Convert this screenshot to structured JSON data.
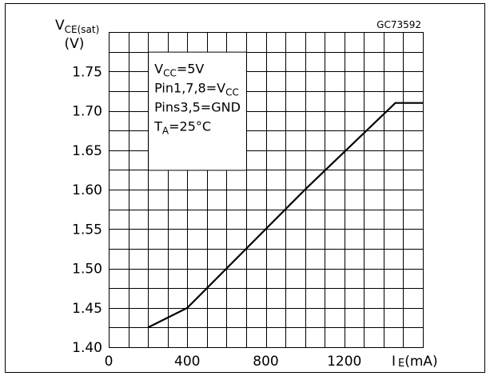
{
  "chart_data": {
    "type": "line",
    "figure_id": "GC73592",
    "ylabel": {
      "main": "V",
      "sub": "CE(sat)",
      "unit": "(V)"
    },
    "xlabel": {
      "main": "I",
      "sub": "E",
      "unit": "(mA)"
    },
    "xlim": [
      0,
      1600
    ],
    "ylim": [
      1.4,
      1.8
    ],
    "x_ticks": [
      {
        "value": 0,
        "label": "0"
      },
      {
        "value": 400,
        "label": "400"
      },
      {
        "value": 800,
        "label": "800"
      },
      {
        "value": 1200,
        "label": "1200"
      }
    ],
    "y_ticks": [
      {
        "value": 1.4,
        "label": "1.40"
      },
      {
        "value": 1.45,
        "label": "1.45"
      },
      {
        "value": 1.5,
        "label": "1.50"
      },
      {
        "value": 1.55,
        "label": "1.55"
      },
      {
        "value": 1.6,
        "label": "1.60"
      },
      {
        "value": 1.65,
        "label": "1.65"
      },
      {
        "value": 1.7,
        "label": "1.70"
      },
      {
        "value": 1.75,
        "label": "1.75"
      }
    ],
    "grid": true,
    "series": [
      {
        "color": "#000000",
        "points": [
          {
            "x": 200,
            "y": 1.425
          },
          {
            "x": 400,
            "y": 1.45
          },
          {
            "x": 1000,
            "y": 1.6
          },
          {
            "x": 1460,
            "y": 1.71
          },
          {
            "x": 1600,
            "y": 1.71
          }
        ]
      }
    ],
    "conditions": [
      [
        {
          "t": "V"
        },
        {
          "t": "CC",
          "sub": true
        },
        {
          "t": "=5V"
        }
      ],
      [
        {
          "t": "Pin1,7,8=V"
        },
        {
          "t": "CC",
          "sub": true
        }
      ],
      [
        {
          "t": "Pins3,5=GND"
        }
      ],
      [
        {
          "t": "T"
        },
        {
          "t": "A",
          "sub": true
        },
        {
          "t": "=25°C"
        }
      ]
    ]
  }
}
